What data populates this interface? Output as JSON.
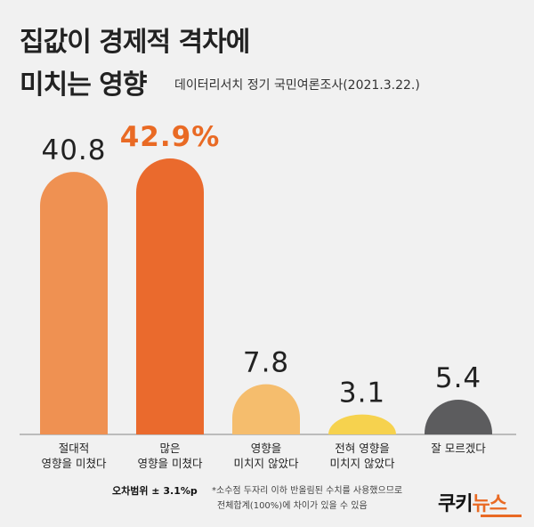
{
  "title": {
    "line1": "집값이 경제적 격차에",
    "line2": "미치는 영향"
  },
  "source": "데이터리서치 정기 국민여론조사(2021.3.22.)",
  "chart_data": {
    "type": "bar",
    "categories": [
      [
        "절대적",
        "영향을 미쳤다"
      ],
      [
        "많은",
        "영향을 미쳤다"
      ],
      [
        "영향을",
        "미치지 않았다"
      ],
      [
        "전혀 영향을",
        "미치지 않았다"
      ],
      [
        "잘 모르겠다"
      ]
    ],
    "values": [
      40.8,
      42.9,
      7.8,
      3.1,
      5.4
    ],
    "value_labels": [
      "40.8",
      "42.9%",
      "7.8",
      "3.1",
      "5.4"
    ],
    "colors": [
      "#ef9152",
      "#ea6a2d",
      "#f5bd6d",
      "#f6d24e",
      "#5c5c5e"
    ],
    "highlight_label_color": "#e96a24",
    "default_label_color": "#222222",
    "highlight_index": 1,
    "ylim": [
      0,
      42.9
    ]
  },
  "footer": {
    "margin_of_error": "오차범위 ± 3.1%p",
    "note_line1": "*소수점 두자리 이하 반올림된 수치를 사용했으므로",
    "note_line2": "전체합계(100%)에 차이가 있을 수 있음"
  },
  "logo": {
    "part1": "쿠키",
    "part2": "뉴스"
  }
}
